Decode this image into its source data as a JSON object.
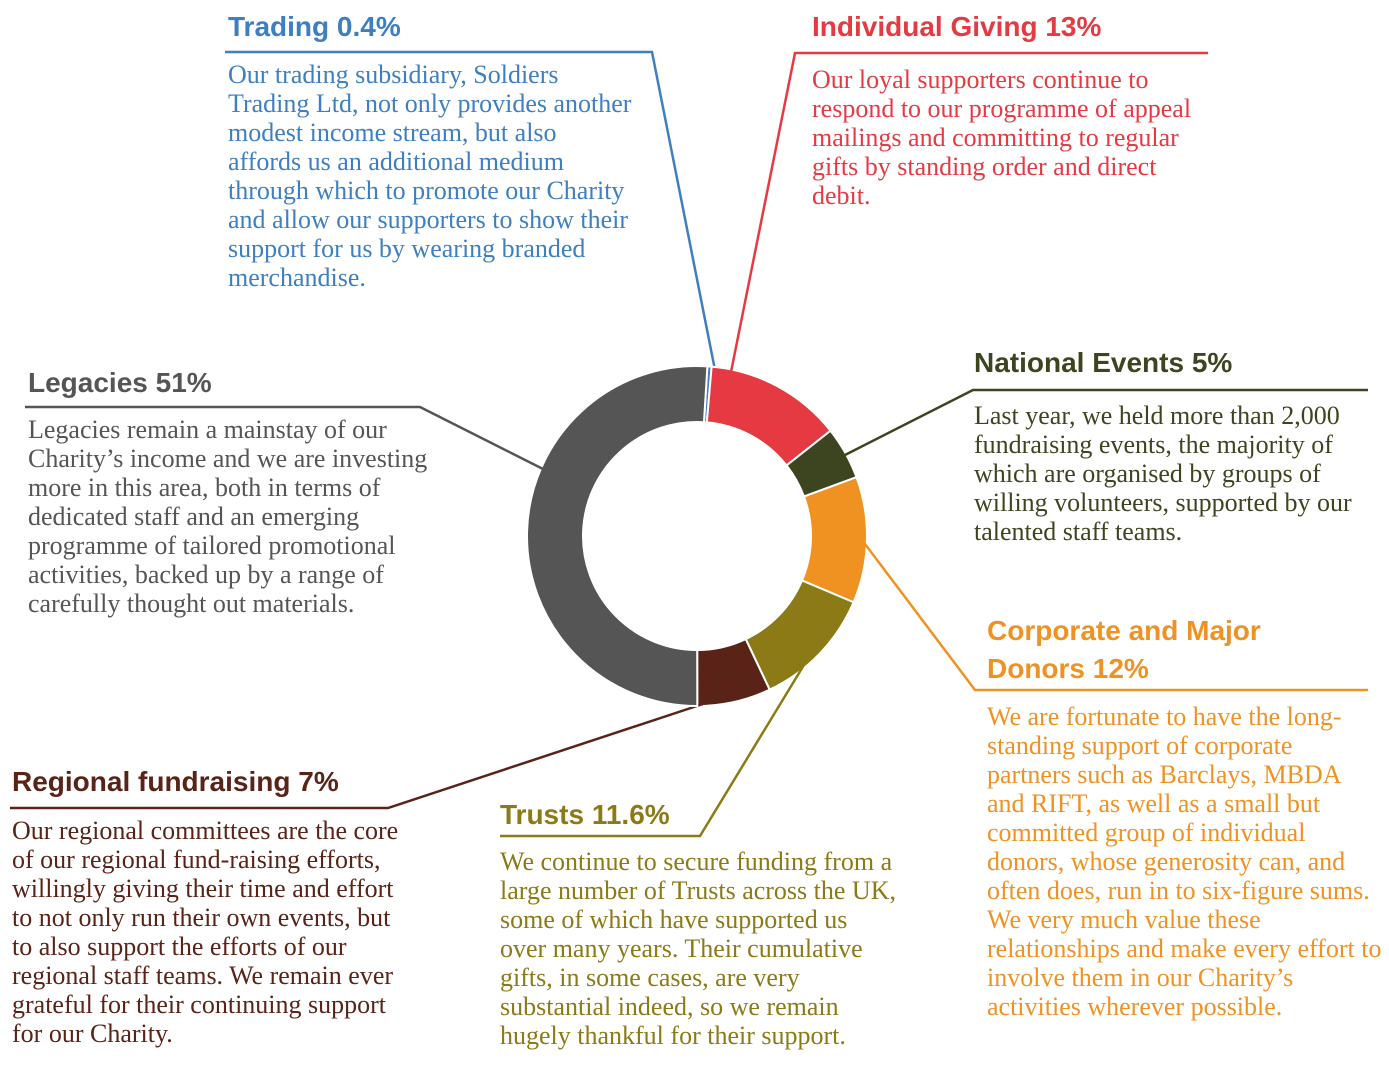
{
  "chart_data": {
    "type": "pie",
    "donut": true,
    "categories": [
      "Trading",
      "Individual Giving",
      "National Events",
      "Corporate and Major Donors",
      "Trusts",
      "Regional fundraising",
      "Legacies"
    ],
    "values": [
      0.4,
      13,
      5,
      12,
      11.6,
      7,
      51
    ],
    "value_labels": [
      "0.4%",
      "13%",
      "5%",
      "12%",
      "11.6%",
      "7%",
      "51%"
    ],
    "colors": [
      "#3d7fc1",
      "#e53a42",
      "#3d4520",
      "#ef9222",
      "#8c7a16",
      "#5a2318",
      "#555555"
    ],
    "descriptions": [
      "Our trading subsidiary, Soldiers Trading Ltd, not only provides another modest income stream, but also affords us an additional medium through which to promote our Charity and allow our supporters to show their support for us by wearing branded merchandise.",
      "Our loyal supporters continue to respond to our programme of appeal mailings and committing to regular gifts by standing order and direct debit.",
      "Last year, we held more than 2,000 fundraising events, the majority of which are organised by groups of willing volunteers, supported by our talented staff teams.",
      "We are fortunate to have the long-standing support of corporate partners such as Barclays, MBDA and RIFT, as well as a small but committed group of individual donors, whose generosity can, and often does, run in to six-figure sums. We very much value these relationships and make every effort to involve them in our Charity’s activities wherever possible.",
      "We continue to secure funding from a large number of Trusts across the UK, some of which have supported us over many years. Their cumulative gifts, in some cases, are very substantial indeed, so we remain hugely thankful for their support.",
      "Our regional committees are the core of our regional fund-raising efforts, willingly giving their time and effort to not only run their own events, but to also support the efforts of our regional staff teams. We remain ever grateful for their continuing support for our Charity.",
      "Legacies remain a mainstay of our Charity’s income and we are investing more in this area, both in terms of dedicated staff and an emerging programme of tailored promotional activities, backed up by a range of carefully thought out materials."
    ]
  }
}
